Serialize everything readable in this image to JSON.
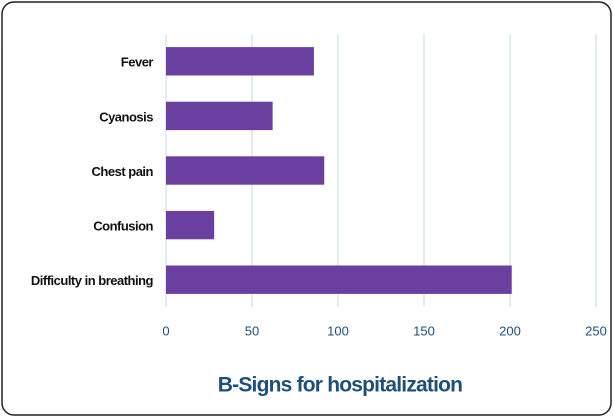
{
  "chart_data": {
    "type": "barh",
    "title": "B-Signs for hospitalization",
    "categories": [
      "Fever",
      "Cyanosis",
      "Chest pain",
      "Confusion",
      "Difficulty in breathing"
    ],
    "values": [
      86,
      62,
      92,
      28,
      201
    ],
    "color": "#6b3fa0",
    "xlim": [
      0,
      250
    ],
    "xticks": [
      0,
      50,
      100,
      150,
      200,
      250
    ],
    "grid": true
  }
}
